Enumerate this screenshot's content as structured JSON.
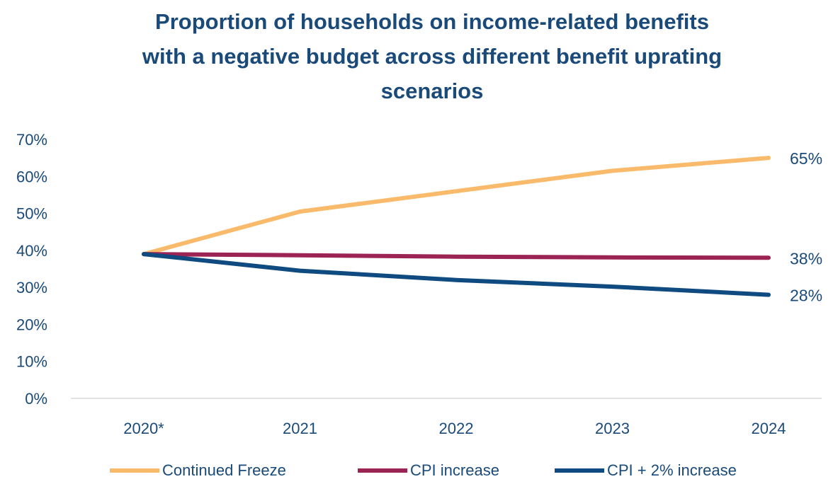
{
  "chart_data": {
    "type": "line",
    "title_lines": [
      "Proportion of households on income-related benefits",
      "with a negative budget across different benefit uprating",
      "scenarios"
    ],
    "x": [
      "2020*",
      "2021",
      "2022",
      "2023",
      "2024"
    ],
    "yticks": [
      "0%",
      "10%",
      "20%",
      "30%",
      "40%",
      "50%",
      "60%",
      "70%"
    ],
    "ylim": [
      0,
      70
    ],
    "grid": false,
    "legend_position": "bottom",
    "series": [
      {
        "name": "Continued Freeze",
        "values": [
          39,
          50.5,
          56,
          61.5,
          65
        ],
        "end_label": "65%",
        "color": "#f9bb6b"
      },
      {
        "name": "CPI increase",
        "values": [
          39,
          38.7,
          38.3,
          38.1,
          38
        ],
        "end_label": "38%",
        "color": "#9c2455"
      },
      {
        "name": "CPI + 2% increase",
        "values": [
          39,
          34.5,
          32,
          30.2,
          28
        ],
        "end_label": "28%",
        "color": "#0f4a80"
      }
    ]
  }
}
